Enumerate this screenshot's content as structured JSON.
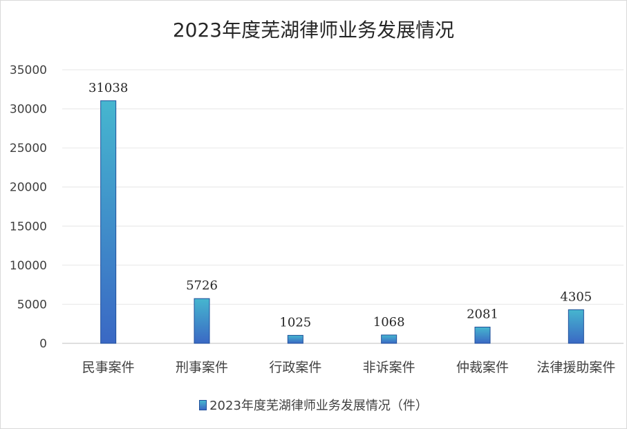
{
  "chart_data": {
    "type": "bar",
    "title": "2023年度芜湖律师业务发展情况",
    "categories": [
      "民事案件",
      "刑事案件",
      "行政案件",
      "非诉案件",
      "仲裁案件",
      "法律援助案件"
    ],
    "series": [
      {
        "name": "2023年度芜湖律师业务发展情况（件）",
        "values": [
          31038,
          5726,
          1025,
          1068,
          2081,
          4305
        ]
      }
    ],
    "ylim": [
      0,
      35000
    ],
    "yticks": [
      "0",
      "5000",
      "10000",
      "15000",
      "20000",
      "25000",
      "30000",
      "35000"
    ],
    "grid": true,
    "data_labels": true,
    "legend_position": "bottom",
    "colors": {
      "bar_top": "#46b6cf",
      "bar_bottom": "#3a68c4",
      "bar_edge": "#1f4e9a",
      "grid": "#e6e6e6",
      "axis": "#bfbfbf"
    }
  }
}
